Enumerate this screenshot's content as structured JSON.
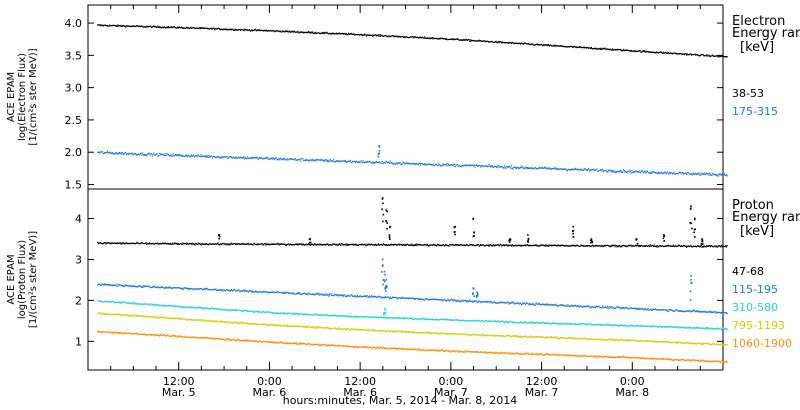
{
  "chart_data": [
    {
      "type": "scatter",
      "panel": "electron",
      "ylabel_lines": [
        "ACE EPAM",
        "log(Electron Flux)",
        "[1/(cm²s ster MeV)]"
      ],
      "ylim": [
        1.43,
        4.28
      ],
      "yticks": [
        1.5,
        2.0,
        2.5,
        3.0,
        3.5,
        4.0
      ],
      "ytick_labels": [
        "1.5",
        "2.0",
        "2.5",
        "3.0",
        "3.5",
        "4.0"
      ],
      "legend_title_lines": [
        "Electron",
        "Energy ranges",
        "[keV]"
      ],
      "series": [
        {
          "name": "38-53",
          "color": "#000000",
          "x": [
            0,
            0.5,
            1.0,
            1.5,
            2.0,
            2.5,
            3.0,
            3.5
          ],
          "y": [
            3.97,
            3.93,
            3.88,
            3.82,
            3.75,
            3.66,
            3.57,
            3.48
          ],
          "noise": 0.012,
          "spikes": []
        },
        {
          "name": "175-315",
          "color": "#1f77d0",
          "x": [
            0,
            0.5,
            1.0,
            1.5,
            2.0,
            2.5,
            3.0,
            3.5
          ],
          "y": [
            2.0,
            1.95,
            1.9,
            1.85,
            1.8,
            1.75,
            1.7,
            1.65
          ],
          "noise": 0.02,
          "spikes": [
            [
              1.6,
              2.1
            ]
          ]
        }
      ]
    },
    {
      "type": "scatter",
      "panel": "proton",
      "ylabel_lines": [
        "ACE EPAM",
        "log(Proton Flux)",
        "[1/(cm²s ster MeV)]"
      ],
      "ylim": [
        0.3,
        4.72
      ],
      "yticks": [
        1,
        2,
        3,
        4
      ],
      "ytick_labels": [
        "1",
        "2",
        "3",
        "4"
      ],
      "legend_title_lines": [
        "Proton",
        "Energy ranges",
        "[keV]"
      ],
      "series": [
        {
          "name": "47-68",
          "color": "#000000",
          "x": [
            0,
            0.5,
            1.0,
            1.5,
            2.0,
            2.5,
            3.0,
            3.5
          ],
          "y": [
            3.4,
            3.38,
            3.37,
            3.36,
            3.35,
            3.34,
            3.33,
            3.32
          ],
          "noise": 0.02,
          "spikes": [
            [
              0.72,
              3.6
            ],
            [
              1.22,
              3.5
            ],
            [
              1.62,
              4.5
            ],
            [
              1.64,
              4.2
            ],
            [
              1.66,
              3.8
            ],
            [
              2.02,
              3.8
            ],
            [
              2.12,
              4.0
            ],
            [
              2.32,
              3.5
            ],
            [
              2.42,
              3.6
            ],
            [
              2.67,
              3.8
            ],
            [
              2.77,
              3.5
            ],
            [
              3.02,
              3.5
            ],
            [
              3.17,
              3.6
            ],
            [
              3.32,
              4.3
            ],
            [
              3.34,
              4.0
            ],
            [
              3.38,
              3.5
            ]
          ]
        },
        {
          "name": "115-195",
          "color": "#1f77d0",
          "x": [
            0,
            0.5,
            1.0,
            1.5,
            2.0,
            2.5,
            3.0,
            3.5
          ],
          "y": [
            2.4,
            2.3,
            2.2,
            2.1,
            2.0,
            1.9,
            1.8,
            1.7
          ],
          "noise": 0.025,
          "spikes": [
            [
              1.62,
              3.0
            ],
            [
              1.63,
              2.7
            ],
            [
              1.64,
              2.5
            ],
            [
              2.12,
              2.3
            ],
            [
              2.14,
              2.2
            ],
            [
              3.32,
              2.6
            ]
          ]
        },
        {
          "name": "310-580",
          "color": "#22d2d2",
          "x": [
            0,
            0.5,
            1.0,
            1.5,
            2.0,
            2.5,
            3.0,
            3.5
          ],
          "y": [
            2.0,
            1.85,
            1.7,
            1.6,
            1.52,
            1.45,
            1.38,
            1.3
          ],
          "noise": 0.02,
          "spikes": [
            [
              1.63,
              1.8
            ]
          ]
        },
        {
          "name": "795-1193",
          "color": "#c8d200",
          "x": [
            0,
            0.5,
            1.0,
            1.5,
            2.0,
            2.5,
            3.0,
            3.5
          ],
          "y": [
            1.7,
            1.55,
            1.4,
            1.28,
            1.18,
            1.1,
            1.02,
            0.92
          ],
          "noise": 0.02,
          "spikes": []
        },
        {
          "name": "1060-1900",
          "color": "#ff8c00",
          "x": [
            0,
            0.5,
            1.0,
            1.5,
            2.0,
            2.5,
            3.0,
            3.5
          ],
          "y": [
            1.25,
            1.12,
            0.98,
            0.86,
            0.76,
            0.68,
            0.6,
            0.5
          ],
          "noise": 0.02,
          "spikes": []
        }
      ]
    }
  ],
  "x_axis": {
    "range": [
      0,
      3.5
    ],
    "major_ticks": [
      {
        "x": 0.5,
        "time": "12:00",
        "date": "Mar. 5"
      },
      {
        "x": 1.0,
        "time": "0:00",
        "date": "Mar. 6"
      },
      {
        "x": 1.5,
        "time": "12:00",
        "date": "Mar. 6"
      },
      {
        "x": 2.0,
        "time": "0:00",
        "date": "Mar. 7"
      },
      {
        "x": 2.5,
        "time": "12:00",
        "date": "Mar. 7"
      },
      {
        "x": 3.0,
        "time": "0:00",
        "date": "Mar. 8"
      }
    ],
    "xlabel": "hours:minutes, Mar.  5, 2014 - Mar.  8, 2014"
  }
}
